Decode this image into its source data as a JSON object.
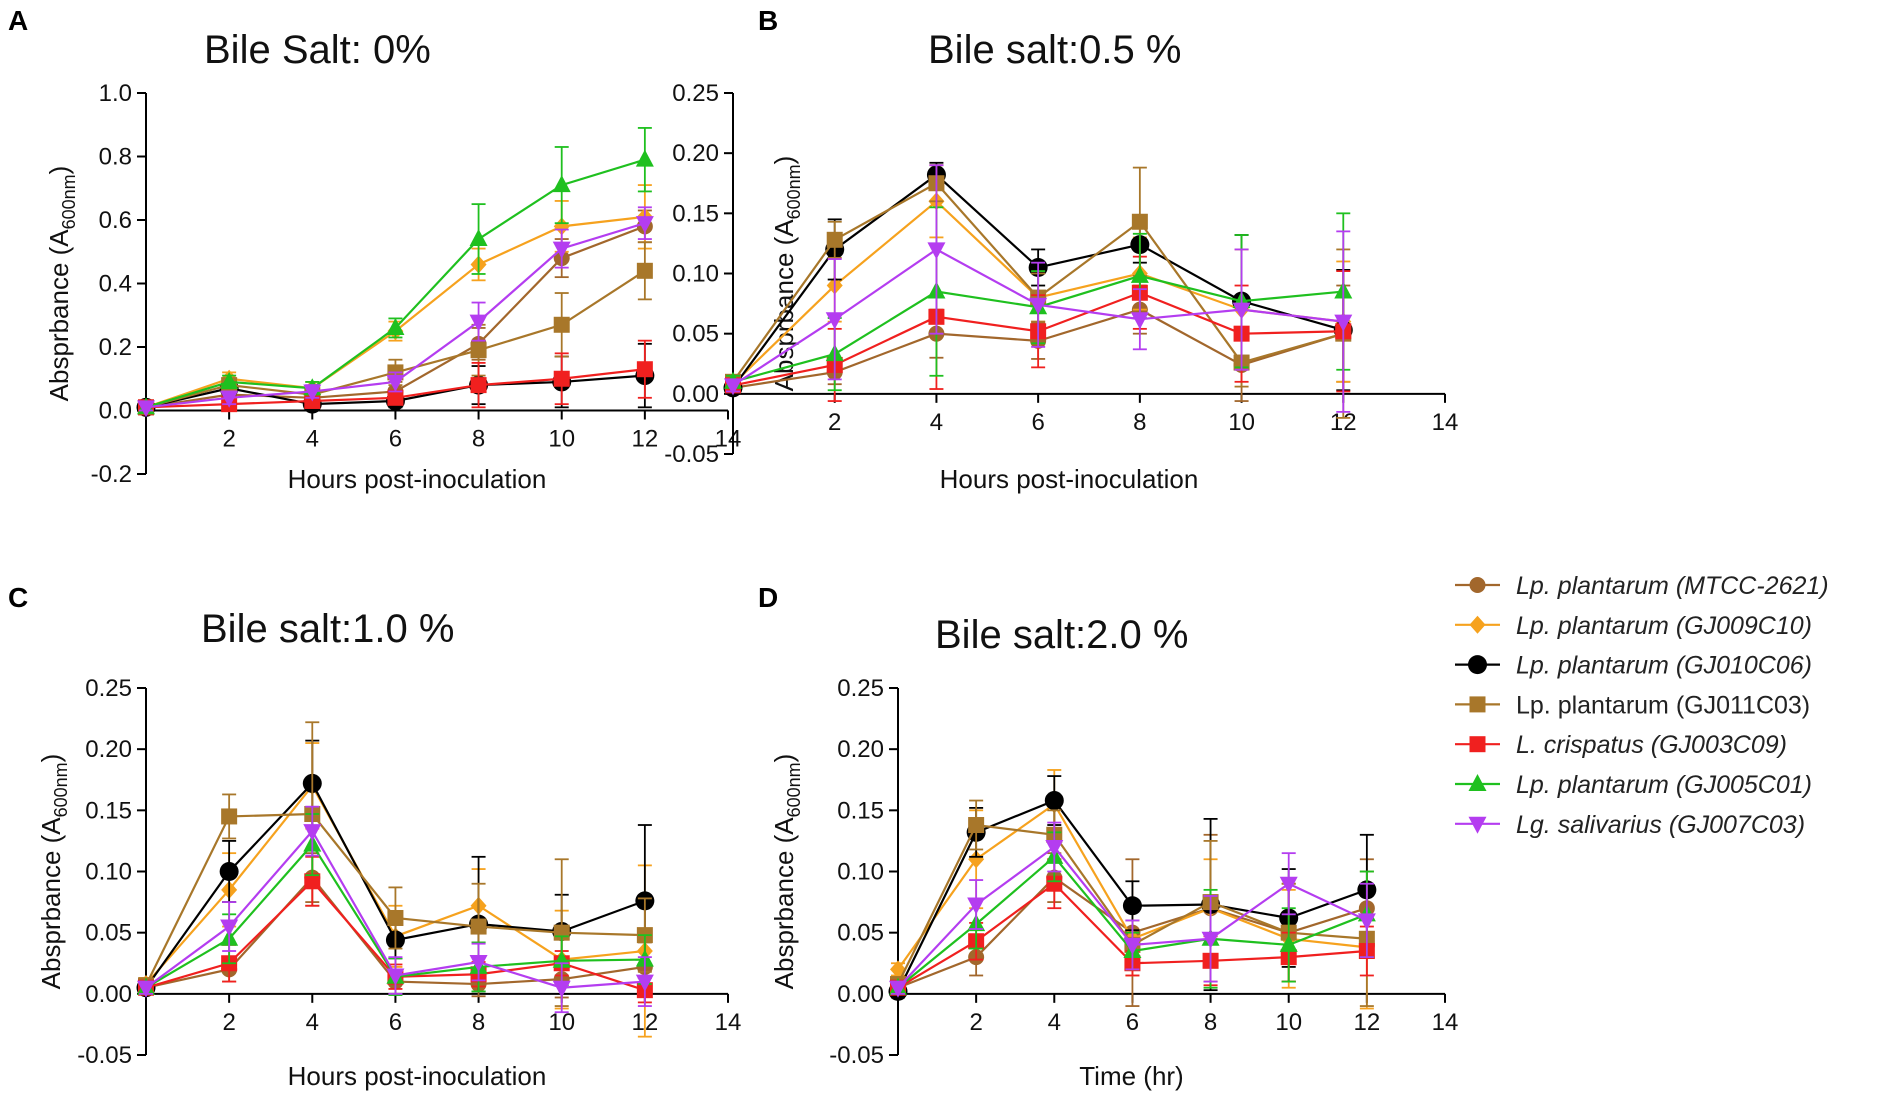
{
  "series_styles": [
    {
      "name": "Lp. plantarum (MTCC-2621)",
      "color": "#a2672c",
      "marker": "circle",
      "italic": true
    },
    {
      "name": "Lp. plantarum (GJ009C10)",
      "color": "#f6a21e",
      "marker": "diamond",
      "italic": true
    },
    {
      "name": "Lp. plantarum (GJ010C06)",
      "color": "#000000",
      "marker": "circle-big",
      "italic": true
    },
    {
      "name": "Lp. plantarum (GJ011C03)",
      "color": "#a8772a",
      "marker": "square",
      "italic": false
    },
    {
      "name": "L. crispatus (GJ003C09)",
      "color": "#f0201f",
      "marker": "square",
      "italic": true
    },
    {
      "name": "Lp. plantarum (GJ005C01)",
      "color": "#1fc01f",
      "marker": "triangle-up",
      "italic": true
    },
    {
      "name": "Lg. salivarius (GJ007C03)",
      "color": "#b43df0",
      "marker": "triangle-down",
      "italic": true
    }
  ],
  "chart_data": [
    {
      "panel": "A",
      "type": "line",
      "title": "Bile Salt: 0%",
      "xlabel": "Hours post-inoculation",
      "ylabel": "Absprbance (A600nm)",
      "ylabel_main": "Absprbance (A",
      "ylabel_sub": "600nm",
      "ylabel_close": ")",
      "xlim": [
        0,
        14
      ],
      "ylim": [
        -0.2,
        1.0
      ],
      "xticks": [
        "2",
        "4",
        "6",
        "8",
        "10",
        "12",
        "14"
      ],
      "yticks": [
        "-0.2",
        "0.0",
        "0.2",
        "0.4",
        "0.6",
        "0.8",
        "1.0"
      ],
      "x": [
        0,
        2,
        4,
        6,
        8,
        10,
        12
      ],
      "series": [
        {
          "name": "Lp. plantarum (MTCC-2621)",
          "values": [
            0.01,
            0.05,
            0.04,
            0.06,
            0.21,
            0.48,
            0.58
          ],
          "err": [
            0.01,
            0.02,
            0.02,
            0.03,
            0.05,
            0.06,
            0.05
          ]
        },
        {
          "name": "Lp. plantarum (GJ009C10)",
          "values": [
            0.01,
            0.1,
            0.07,
            0.25,
            0.46,
            0.58,
            0.61
          ],
          "err": [
            0.01,
            0.02,
            0.02,
            0.03,
            0.05,
            0.08,
            0.1
          ]
        },
        {
          "name": "Lp. plantarum (GJ010C06)",
          "values": [
            0.01,
            0.07,
            0.02,
            0.03,
            0.08,
            0.09,
            0.11
          ],
          "err": [
            0.01,
            0.02,
            0.02,
            0.02,
            0.06,
            0.08,
            0.1
          ]
        },
        {
          "name": "Lp. plantarum (GJ011C03)",
          "values": [
            0.01,
            0.08,
            0.05,
            0.12,
            0.19,
            0.27,
            0.44
          ],
          "err": [
            0.01,
            0.02,
            0.02,
            0.04,
            0.08,
            0.1,
            0.09
          ]
        },
        {
          "name": "L. crispatus (GJ003C09)",
          "values": [
            0.01,
            0.02,
            0.03,
            0.04,
            0.08,
            0.1,
            0.13
          ],
          "err": [
            0.01,
            0.02,
            0.02,
            0.02,
            0.07,
            0.08,
            0.09
          ]
        },
        {
          "name": "Lp. plantarum (GJ005C01)",
          "values": [
            0.01,
            0.09,
            0.07,
            0.26,
            0.54,
            0.71,
            0.79
          ],
          "err": [
            0.01,
            0.02,
            0.02,
            0.03,
            0.11,
            0.12,
            0.1
          ]
        },
        {
          "name": "Lg. salivarius (GJ007C03)",
          "values": [
            0.01,
            0.04,
            0.06,
            0.09,
            0.28,
            0.51,
            0.59
          ],
          "err": [
            0.01,
            0.02,
            0.02,
            0.03,
            0.06,
            0.06,
            0.05
          ]
        }
      ]
    },
    {
      "panel": "B",
      "type": "line",
      "title": "Bile salt:0.5 %",
      "xlabel": "Hours post-inoculation",
      "ylabel": "Absprbance (A600nm)",
      "ylabel_main": "Absprbance (A",
      "ylabel_sub": "600nm",
      "ylabel_close": ")",
      "xlim": [
        0,
        14
      ],
      "ylim": [
        -0.05,
        0.25
      ],
      "xticks": [
        "2",
        "4",
        "6",
        "8",
        "10",
        "12",
        "14"
      ],
      "yticks": [
        "-0.05",
        "0.00",
        "0.05",
        "0.10",
        "0.15",
        "0.20",
        "0.25"
      ],
      "x": [
        0,
        2,
        4,
        6,
        8,
        10,
        12
      ],
      "series": [
        {
          "name": "Lp. plantarum (MTCC-2621)",
          "values": [
            0.005,
            0.018,
            0.05,
            0.044,
            0.07,
            0.024,
            0.05
          ],
          "err": [
            0.005,
            0.01,
            0.02,
            0.015,
            0.02,
            0.03,
            0.04
          ]
        },
        {
          "name": "Lp. plantarum (GJ009C10)",
          "values": [
            0.008,
            0.09,
            0.16,
            0.08,
            0.1,
            0.07,
            0.06
          ],
          "err": [
            0.005,
            0.03,
            0.03,
            0.02,
            0.03,
            0.05,
            0.05
          ]
        },
        {
          "name": "Lp. plantarum (GJ010C06)",
          "values": [
            0.005,
            0.12,
            0.182,
            0.105,
            0.124,
            0.077,
            0.053
          ],
          "err": [
            0.005,
            0.025,
            0.01,
            0.015,
            0.015,
            0.055,
            0.05
          ]
        },
        {
          "name": "Lp. plantarum (GJ011C03)",
          "values": [
            0.01,
            0.128,
            0.175,
            0.08,
            0.143,
            0.026,
            0.05
          ],
          "err": [
            0.005,
            0.015,
            0.015,
            0.02,
            0.045,
            0.02,
            0.07
          ]
        },
        {
          "name": "L. crispatus (GJ003C09)",
          "values": [
            0.007,
            0.024,
            0.064,
            0.052,
            0.084,
            0.05,
            0.052
          ],
          "err": [
            0.005,
            0.03,
            0.06,
            0.03,
            0.03,
            0.04,
            0.05
          ]
        },
        {
          "name": "Lp. plantarum (GJ005C01)",
          "values": [
            0.01,
            0.033,
            0.085,
            0.072,
            0.098,
            0.077,
            0.085
          ],
          "err": [
            0.005,
            0.03,
            0.07,
            0.03,
            0.035,
            0.055,
            0.065
          ]
        },
        {
          "name": "Lg. salivarius (GJ007C03)",
          "values": [
            0.007,
            0.062,
            0.12,
            0.074,
            0.062,
            0.07,
            0.06
          ],
          "err": [
            0.005,
            0.05,
            0.07,
            0.035,
            0.025,
            0.05,
            0.075
          ]
        }
      ]
    },
    {
      "panel": "C",
      "type": "line",
      "title": "Bile salt:1.0 %",
      "xlabel": "Hours post-inoculation",
      "ylabel": "Absprbance (A600nm)",
      "ylabel_main": "Absprbance (A",
      "ylabel_sub": "600nm",
      "ylabel_close": ")",
      "xlim": [
        0,
        14
      ],
      "ylim": [
        -0.05,
        0.25
      ],
      "xticks": [
        "2",
        "4",
        "6",
        "8",
        "10",
        "12",
        "14"
      ],
      "yticks": [
        "-0.05",
        "0.00",
        "0.05",
        "0.10",
        "0.15",
        "0.20",
        "0.25"
      ],
      "x": [
        0,
        2,
        4,
        6,
        8,
        10,
        12
      ],
      "series": [
        {
          "name": "Lp. plantarum (MTCC-2621)",
          "values": [
            0.005,
            0.02,
            0.095,
            0.01,
            0.008,
            0.012,
            0.022
          ],
          "err": [
            0.005,
            0.01,
            0.02,
            0.01,
            0.01,
            0.015,
            0.02
          ]
        },
        {
          "name": "Lp. plantarum (GJ009C10)",
          "values": [
            0.008,
            0.085,
            0.17,
            0.047,
            0.072,
            0.028,
            0.035
          ],
          "err": [
            0.005,
            0.03,
            0.035,
            0.025,
            0.03,
            0.04,
            0.07
          ]
        },
        {
          "name": "Lp. plantarum (GJ010C06)",
          "values": [
            0.005,
            0.1,
            0.172,
            0.044,
            0.057,
            0.051,
            0.076
          ],
          "err": [
            0.005,
            0.025,
            0.035,
            0.015,
            0.055,
            0.03,
            0.062
          ]
        },
        {
          "name": "Lp. plantarum (GJ011C03)",
          "values": [
            0.007,
            0.145,
            0.147,
            0.062,
            0.055,
            0.05,
            0.048
          ],
          "err": [
            0.005,
            0.018,
            0.075,
            0.025,
            0.035,
            0.06,
            0.03
          ]
        },
        {
          "name": "L. crispatus (GJ003C09)",
          "values": [
            0.005,
            0.025,
            0.092,
            0.014,
            0.016,
            0.025,
            0.003
          ],
          "err": [
            0.005,
            0.015,
            0.02,
            0.01,
            0.01,
            0.01,
            0.01
          ]
        },
        {
          "name": "Lp. plantarum (GJ005C01)",
          "values": [
            0.005,
            0.045,
            0.122,
            0.014,
            0.022,
            0.027,
            0.028
          ],
          "err": [
            0.005,
            0.02,
            0.025,
            0.015,
            0.02,
            0.02,
            0.02
          ]
        },
        {
          "name": "Lg. salivarius (GJ007C03)",
          "values": [
            0.005,
            0.055,
            0.133,
            0.015,
            0.026,
            0.005,
            0.01
          ],
          "err": [
            0.005,
            0.02,
            0.02,
            0.015,
            0.015,
            0.02,
            0.02
          ]
        }
      ]
    },
    {
      "panel": "D",
      "type": "line",
      "title": "Bile salt:2.0 %",
      "xlabel": "Time (hr)",
      "ylabel": "Absprbance (A600nm)",
      "ylabel_main": "Absprbance (A",
      "ylabel_sub": "600nm",
      "ylabel_close": ")",
      "xlim": [
        0,
        14
      ],
      "ylim": [
        -0.05,
        0.25
      ],
      "xticks": [
        "2",
        "4",
        "6",
        "8",
        "10",
        "12",
        "14"
      ],
      "yticks": [
        "-0.05",
        "0.00",
        "0.05",
        "0.10",
        "0.15",
        "0.20",
        "0.25"
      ],
      "x": [
        0,
        2,
        4,
        6,
        8,
        10,
        12
      ],
      "series": [
        {
          "name": "Lp. plantarum (MTCC-2621)",
          "values": [
            0.005,
            0.03,
            0.095,
            0.05,
            0.07,
            0.05,
            0.07
          ],
          "err": [
            0.005,
            0.015,
            0.02,
            0.06,
            0.06,
            0.04,
            0.04
          ]
        },
        {
          "name": "Lp. plantarum (GJ009C10)",
          "values": [
            0.02,
            0.11,
            0.155,
            0.045,
            0.07,
            0.045,
            0.038
          ],
          "err": [
            0.005,
            0.04,
            0.028,
            0.03,
            0.04,
            0.04,
            0.05
          ]
        },
        {
          "name": "Lp. plantarum (GJ010C06)",
          "values": [
            0.002,
            0.132,
            0.158,
            0.072,
            0.073,
            0.062,
            0.085
          ],
          "err": [
            0.005,
            0.02,
            0.02,
            0.02,
            0.07,
            0.04,
            0.045
          ]
        },
        {
          "name": "Lp. plantarum (GJ011C03)",
          "values": [
            0.008,
            0.138,
            0.13,
            0.04,
            0.075,
            0.05,
            0.045
          ],
          "err": [
            0.005,
            0.02,
            0.02,
            0.02,
            0.05,
            0.04,
            0.055
          ]
        },
        {
          "name": "L. crispatus (GJ003C09)",
          "values": [
            0.005,
            0.043,
            0.09,
            0.025,
            0.027,
            0.03,
            0.035
          ],
          "err": [
            0.005,
            0.015,
            0.02,
            0.01,
            0.02,
            0.02,
            0.02
          ]
        },
        {
          "name": "Lp. plantarum (GJ005C01)",
          "values": [
            0.005,
            0.057,
            0.112,
            0.035,
            0.045,
            0.04,
            0.065
          ],
          "err": [
            0.005,
            0.02,
            0.02,
            0.015,
            0.04,
            0.03,
            0.035
          ]
        },
        {
          "name": "Lg. salivarius (GJ007C03)",
          "values": [
            0.005,
            0.073,
            0.12,
            0.04,
            0.045,
            0.09,
            0.06
          ],
          "err": [
            0.005,
            0.02,
            0.02,
            0.02,
            0.035,
            0.025,
            0.03
          ]
        }
      ]
    }
  ]
}
